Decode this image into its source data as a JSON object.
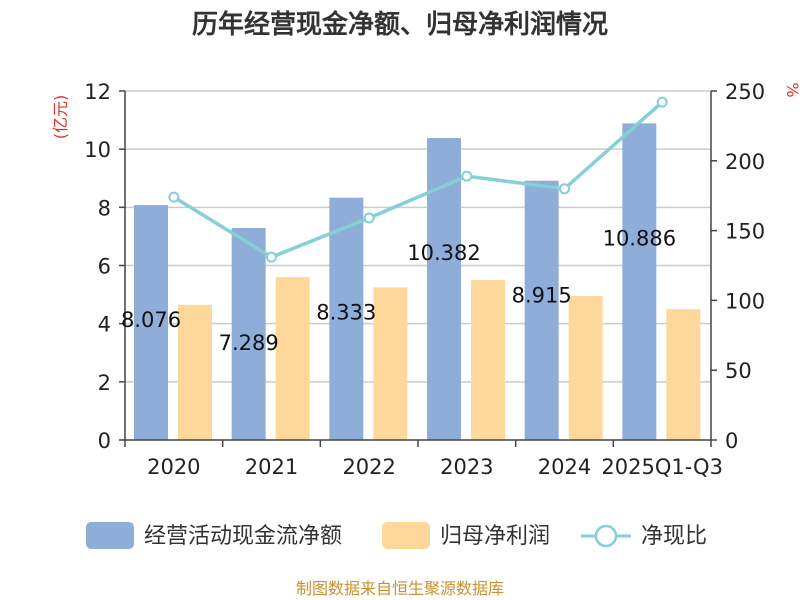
{
  "chart_data": {
    "type": "bar",
    "title": "历年经营现金净额、归母净利润情况",
    "categories": [
      "2020",
      "2021",
      "2022",
      "2023",
      "2024",
      "2025Q1-Q3"
    ],
    "y_left": {
      "unit": "(亿元)",
      "ylim": [
        0,
        12
      ],
      "ticks": [
        "0",
        "2",
        "4",
        "6",
        "8",
        "10",
        "12"
      ]
    },
    "y_right": {
      "unit": "%",
      "ylim": [
        0,
        250
      ],
      "ticks": [
        "0",
        "50",
        "100",
        "150",
        "200",
        "250"
      ]
    },
    "series": [
      {
        "name": "经营活动现金流净额",
        "kind": "bar",
        "axis": "left",
        "color": "#8eadd9",
        "values": [
          8.076,
          7.289,
          8.333,
          10.382,
          8.915,
          10.886
        ],
        "labels": [
          "8.076",
          "7.289",
          "8.333",
          "10.382",
          "8.915",
          "10.886"
        ]
      },
      {
        "name": "归母净利润",
        "kind": "bar",
        "axis": "left",
        "color": "#fdd89a",
        "values": [
          4.65,
          5.6,
          5.25,
          5.5,
          4.95,
          4.5
        ]
      },
      {
        "name": "净现比",
        "kind": "line",
        "axis": "right",
        "color": "#84d0d4",
        "values": [
          174,
          131,
          159,
          189,
          180,
          242
        ]
      }
    ],
    "grid": true,
    "legend_position": "bottom"
  },
  "source_note": "制图数据来自恒生聚源数据库"
}
